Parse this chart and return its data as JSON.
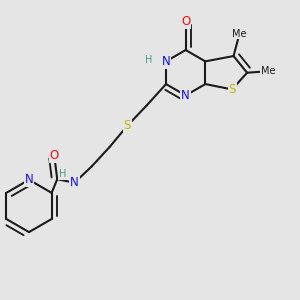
{
  "bg": "#e5e5e5",
  "bond_color": "#1a1a1a",
  "bond_lw": 1.5,
  "colors": {
    "N": "#1010ee",
    "O": "#ee1010",
    "S": "#bbbb00",
    "H": "#4a9a8a",
    "C": "#1a1a1a"
  },
  "fs": 8.5,
  "fs_small": 7.0,
  "dbo": 0.018
}
